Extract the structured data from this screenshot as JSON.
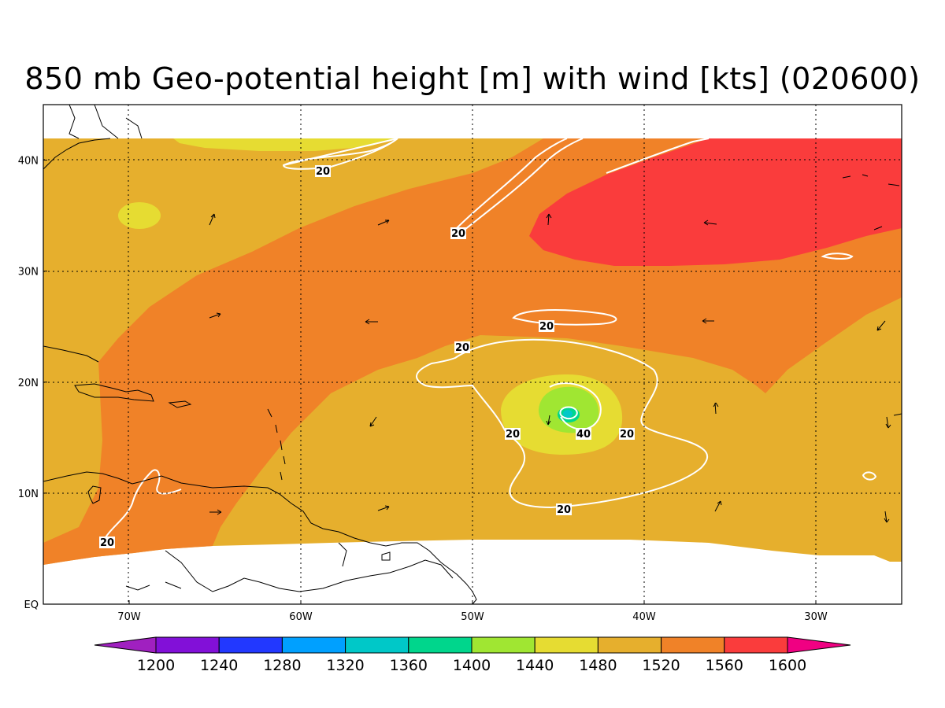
{
  "title": "850 mb Geo-potential height [m] with wind [kts] (020600)",
  "map": {
    "lon_ticks": [
      {
        "lon": -70,
        "label": "70W"
      },
      {
        "lon": -60,
        "label": "60W"
      },
      {
        "lon": -50,
        "label": "50W"
      },
      {
        "lon": -40,
        "label": "40W"
      },
      {
        "lon": -30,
        "label": "30W"
      }
    ],
    "lat_ticks": [
      {
        "lat": 0,
        "label": "EQ"
      },
      {
        "lat": 10,
        "label": "10N"
      },
      {
        "lat": 20,
        "label": "20N"
      },
      {
        "lat": 30,
        "label": "30N"
      },
      {
        "lat": 40,
        "label": "40N"
      }
    ],
    "lon_range": [
      -75,
      -25
    ],
    "lat_range": [
      0,
      45
    ],
    "grid": true,
    "grid_style": "dotted"
  },
  "colorbar": {
    "levels": [
      "1200",
      "1240",
      "1280",
      "1320",
      "1360",
      "1400",
      "1440",
      "1480",
      "1520",
      "1560",
      "1600"
    ],
    "colors": [
      "#a020c0",
      "#8210d8",
      "#2238ff",
      "#00a0ff",
      "#00c8c8",
      "#00d68c",
      "#a0e632",
      "#e6dc32",
      "#e6af2d",
      "#f08228",
      "#fa3c3c",
      "#f00082"
    ]
  },
  "contour_labels": {
    "l1": "20",
    "l2": "20",
    "l3": "20",
    "l4": "20",
    "l5": "20",
    "l6": "40",
    "l7": "20",
    "l8": "20",
    "l9": "20"
  },
  "colors": {
    "c1480": "#e6dc32",
    "c1520": "#e6af2d",
    "c1560": "#f08228",
    "c1600": "#fa3c3c",
    "c1440": "#a0e632",
    "c1400": "#00d68c",
    "c1360": "#00c8c8"
  }
}
